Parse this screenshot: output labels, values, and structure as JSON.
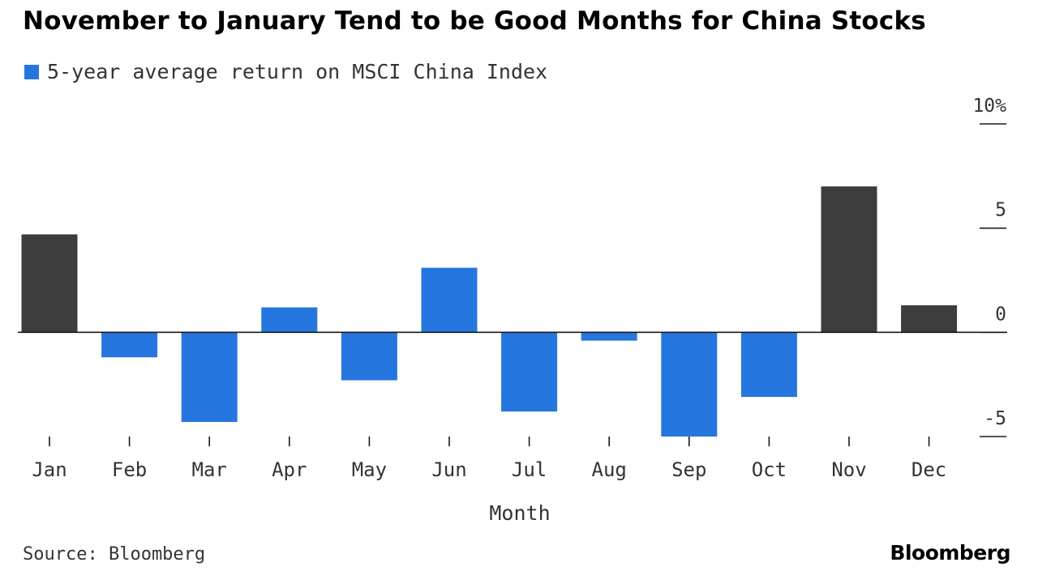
{
  "chart_data": {
    "type": "bar",
    "title": "November to January Tend to be Good Months for China Stocks",
    "xlabel": "Month",
    "ylabel": "",
    "categories": [
      "Jan",
      "Feb",
      "Mar",
      "Apr",
      "May",
      "Jun",
      "Jul",
      "Aug",
      "Sep",
      "Oct",
      "Nov",
      "Dec"
    ],
    "series": [
      {
        "name": "5-year average return on MSCI China Index",
        "values": [
          4.7,
          -1.2,
          -4.3,
          1.2,
          -2.3,
          3.1,
          -3.8,
          -0.4,
          -5.0,
          -3.1,
          7.0,
          1.3
        ]
      }
    ],
    "highlighted_categories": [
      "Jan",
      "Nov",
      "Dec"
    ],
    "ylim": [
      -5,
      10
    ],
    "y_ticks": [
      10,
      5,
      0,
      -5
    ],
    "y_tick_labels": [
      "10%",
      "5",
      "0",
      "-5"
    ],
    "y_axis_position": "right",
    "legend_position": "top-left",
    "grid": false
  },
  "source": "Source: Bloomberg",
  "brand": "Bloomberg",
  "colors": {
    "bar_default": "#2676e0",
    "bar_highlight": "#3d3d3d",
    "axis": "#1a1a1a",
    "text": "#333333"
  }
}
